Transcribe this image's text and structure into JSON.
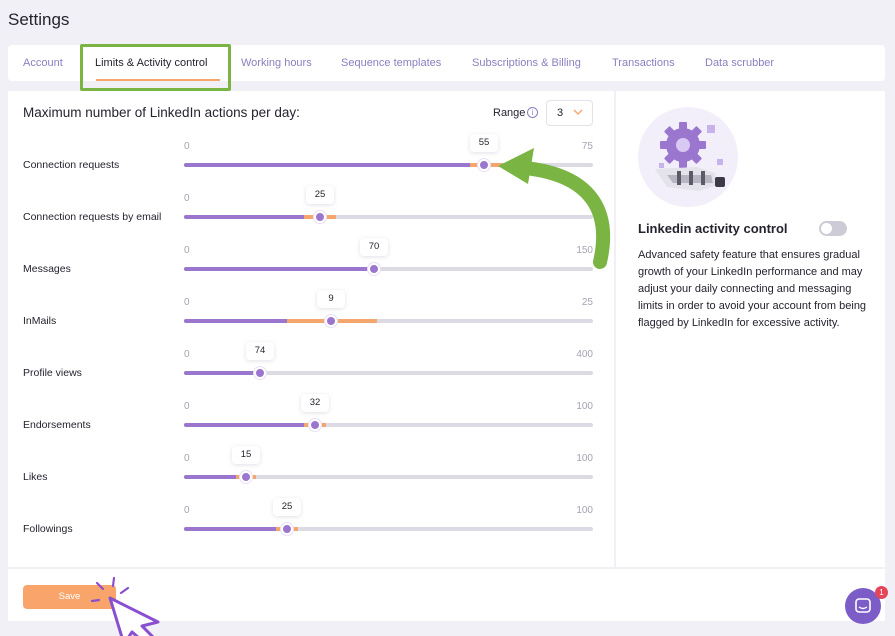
{
  "page": {
    "title": "Settings"
  },
  "tabs": [
    {
      "label": "Account",
      "active": false
    },
    {
      "label": "Limits & Activity control",
      "active": true
    },
    {
      "label": "Working hours",
      "active": false
    },
    {
      "label": "Sequence templates",
      "active": false
    },
    {
      "label": "Subscriptions & Billing",
      "active": false
    },
    {
      "label": "Transactions",
      "active": false
    },
    {
      "label": "Data scrubber",
      "active": false
    }
  ],
  "limits": {
    "title": "Maximum number of LinkedIn actions per day:",
    "range_label": "Range",
    "range_value": "3",
    "sliders": [
      {
        "label": "Connection requests",
        "min": "0",
        "max": "75",
        "value": "55"
      },
      {
        "label": "Connection requests by email",
        "min": "0",
        "max": "",
        "value": "25"
      },
      {
        "label": "Messages",
        "min": "0",
        "max": "150",
        "value": "70"
      },
      {
        "label": "InMails",
        "min": "0",
        "max": "25",
        "value": "9"
      },
      {
        "label": "Profile views",
        "min": "0",
        "max": "400",
        "value": "74"
      },
      {
        "label": "Endorsements",
        "min": "0",
        "max": "100",
        "value": "32"
      },
      {
        "label": "Likes",
        "min": "0",
        "max": "100",
        "value": "15"
      },
      {
        "label": "Followings",
        "min": "0",
        "max": "100",
        "value": "25"
      }
    ]
  },
  "activity_control": {
    "title": "Linkedin activity control",
    "enabled": false,
    "description": "Advanced safety feature that ensures gradual growth of your LinkedIn performance and may adjust your daily connecting and messaging limits in order to avoid your account from being flagged by LinkedIn for excessive activity."
  },
  "footer": {
    "save_label": "Save"
  },
  "chat": {
    "badge": "1"
  },
  "colors": {
    "accent_purple": "#9a76cf",
    "accent_orange": "#f5a66c",
    "annotation_green": "#7ab443"
  }
}
